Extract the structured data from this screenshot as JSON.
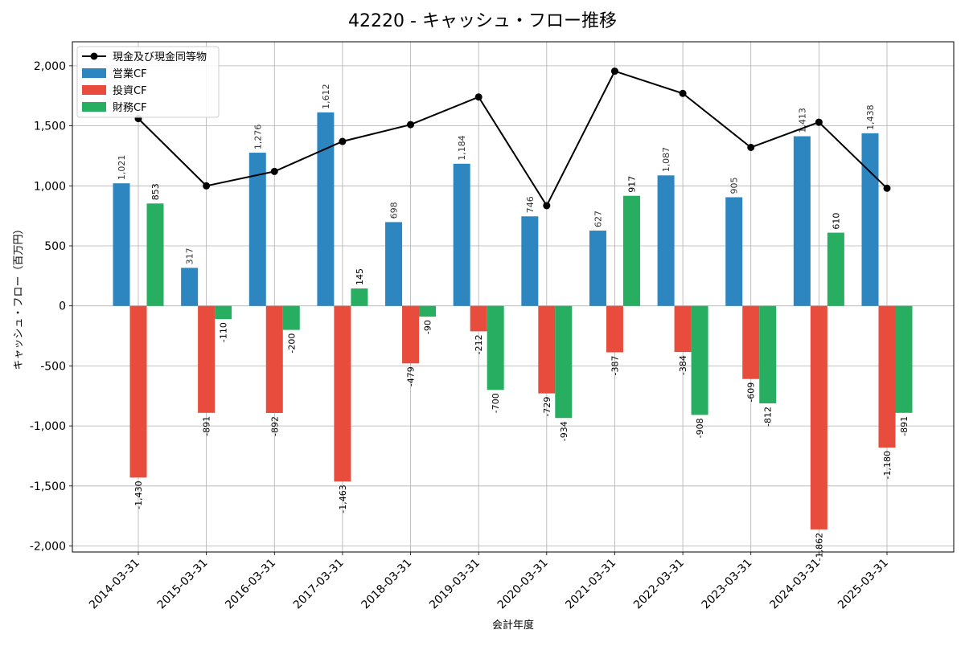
{
  "chart_data": {
    "type": "bar",
    "title": "42220 - キャッシュ・フロー推移",
    "xlabel": "会計年度",
    "ylabel": "キャッシュ・フロー（百万円）",
    "ylim": [
      -2050,
      2200
    ],
    "yticks": [
      -2000,
      -1500,
      -1000,
      -500,
      0,
      500,
      1000,
      1500,
      2000
    ],
    "ytick_labels": [
      "-2,000",
      "-1,500",
      "-1,000",
      "-500",
      "0",
      "500",
      "1,000",
      "1,500",
      "2,000"
    ],
    "grid": true,
    "legend_position": "top-left",
    "categories": [
      "2014-03-31",
      "2015-03-31",
      "2016-03-31",
      "2017-03-31",
      "2018-03-31",
      "2019-03-31",
      "2020-03-31",
      "2021-03-31",
      "2022-03-31",
      "2023-03-31",
      "2024-03-31",
      "2025-03-31"
    ],
    "series": [
      {
        "name": "営業CF",
        "kind": "bar",
        "color": "#2e86c1",
        "values": [
          1021,
          317,
          1276,
          1612,
          698,
          1184,
          746,
          627,
          1087,
          905,
          1413,
          1438
        ],
        "labels": [
          "1,021",
          "317",
          "1,276",
          "1,612",
          "698",
          "1,184",
          "746",
          "627",
          "1,087",
          "905",
          "1,413",
          "1,438"
        ]
      },
      {
        "name": "投資CF",
        "kind": "bar",
        "color": "#e74c3c",
        "values": [
          -1430,
          -891,
          -892,
          -1463,
          -479,
          -212,
          -729,
          -387,
          -384,
          -609,
          -1862,
          -1180
        ],
        "labels": [
          "-1,430",
          "-891",
          "-892",
          "-1,463",
          "-479",
          "-212",
          "-729",
          "-387",
          "-384",
          "-609",
          "-1,862",
          "-1,180"
        ]
      },
      {
        "name": "財務CF",
        "kind": "bar",
        "color": "#27ae60",
        "values": [
          853,
          -110,
          -200,
          145,
          -90,
          -700,
          -934,
          917,
          -908,
          -812,
          610,
          -891
        ],
        "labels": [
          "853",
          "-110",
          "-200",
          "145",
          "-90",
          "-700",
          "-934",
          "917",
          "-908",
          "-812",
          "610",
          "-891"
        ]
      },
      {
        "name": "現金及び現金同等物",
        "kind": "line",
        "color": "#000000",
        "values": [
          1560,
          1000,
          1120,
          1370,
          1510,
          1740,
          835,
          1955,
          1770,
          1320,
          1530,
          980
        ]
      }
    ]
  }
}
